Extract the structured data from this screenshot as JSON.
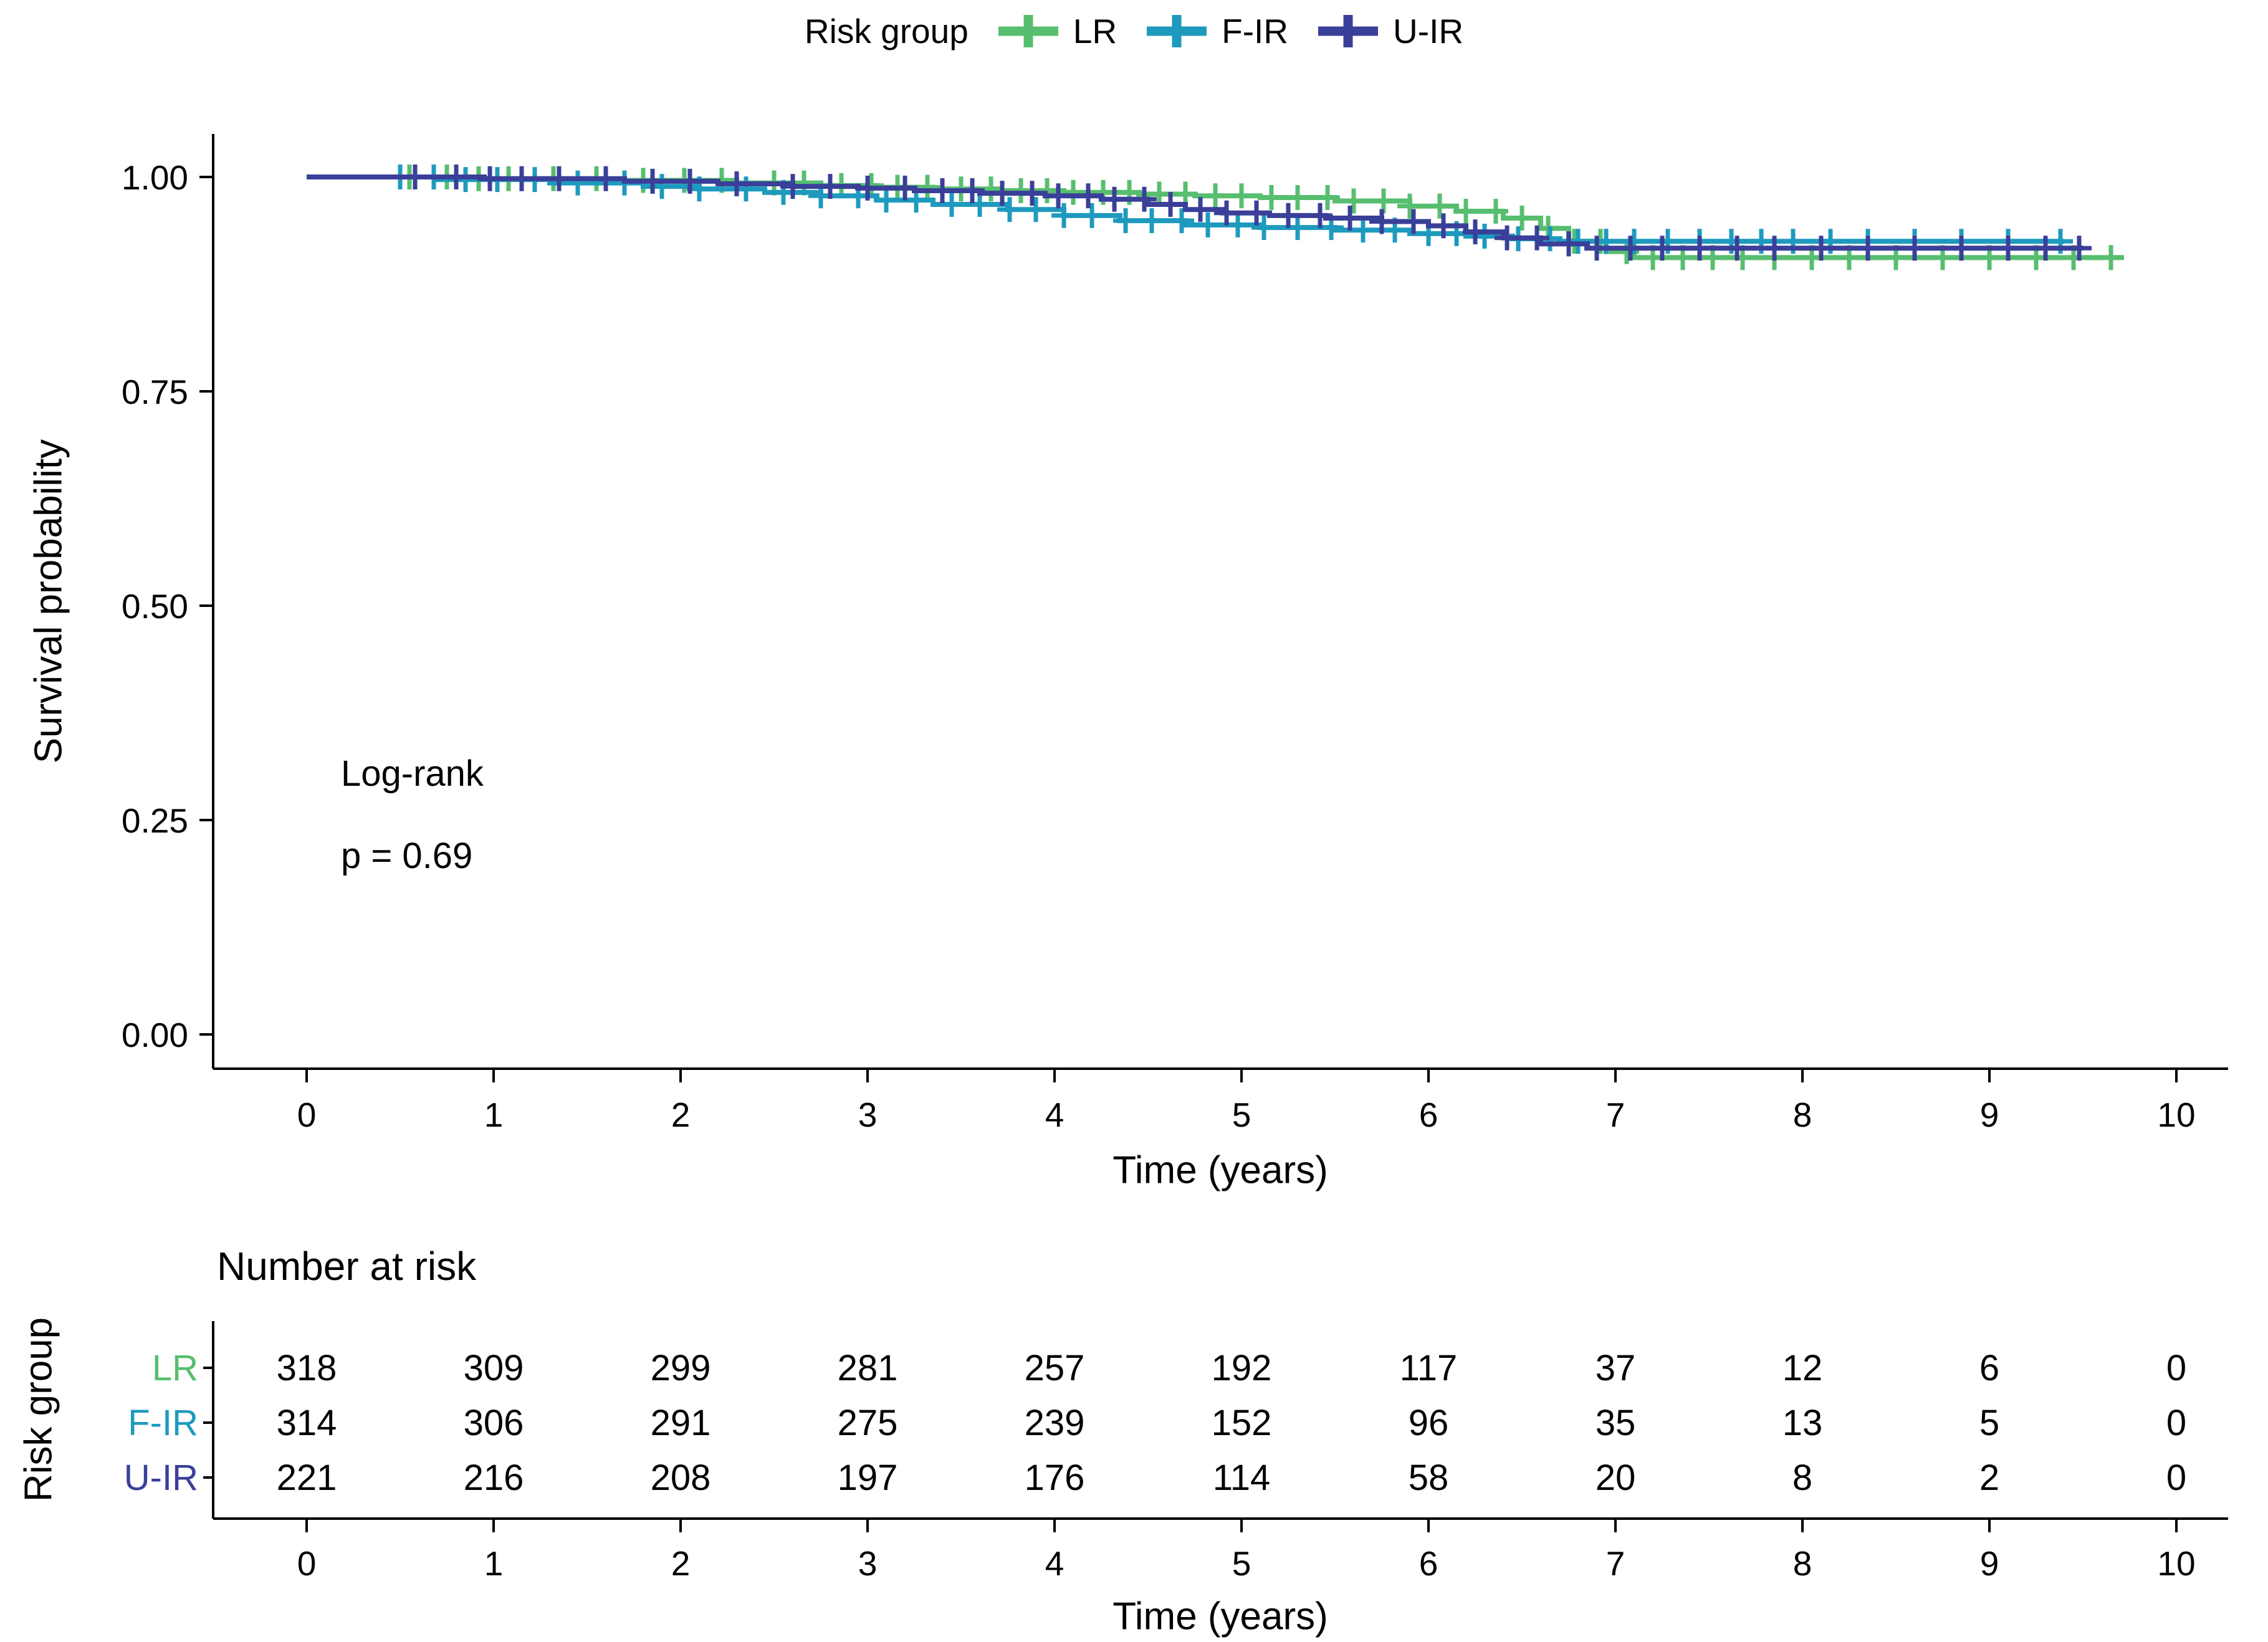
{
  "legend": {
    "title": "Risk group",
    "items": [
      {
        "label": "LR",
        "color": "#57BE6F"
      },
      {
        "label": "F-IR",
        "color": "#1E9ABE"
      },
      {
        "label": "U-IR",
        "color": "#3A3F99"
      }
    ]
  },
  "annotation": {
    "line1": "Log-rank",
    "line2": "p = 0.69"
  },
  "axes": {
    "x": {
      "label": "Time (years)",
      "ticks": [
        0,
        1,
        2,
        3,
        4,
        5,
        6,
        7,
        8,
        9,
        10
      ]
    },
    "y": {
      "label": "Survival probability",
      "ticks": [
        {
          "v": 1.0,
          "label": "1.00"
        },
        {
          "v": 0.75,
          "label": "0.75"
        },
        {
          "v": 0.5,
          "label": "0.50"
        },
        {
          "v": 0.25,
          "label": "0.25"
        },
        {
          "v": 0.0,
          "label": "0.00"
        }
      ]
    }
  },
  "risk_table": {
    "title": "Number at risk",
    "axis_label": "Risk group",
    "x_label": "Time (years)",
    "times": [
      0,
      1,
      2,
      3,
      4,
      5,
      6,
      7,
      8,
      9,
      10
    ],
    "rows": [
      {
        "label": "LR",
        "color": "#57BE6F",
        "values": [
          318,
          309,
          299,
          281,
          257,
          192,
          117,
          37,
          12,
          6,
          0
        ]
      },
      {
        "label": "F-IR",
        "color": "#1E9ABE",
        "values": [
          314,
          306,
          291,
          275,
          239,
          152,
          96,
          35,
          13,
          5,
          0
        ]
      },
      {
        "label": "U-IR",
        "color": "#3A3F99",
        "values": [
          221,
          216,
          208,
          197,
          176,
          114,
          58,
          20,
          8,
          2,
          0
        ]
      }
    ]
  },
  "chart_data": {
    "type": "line",
    "subtype": "kaplan-meier-step",
    "title": "",
    "xlabel": "Time (years)",
    "ylabel": "Survival probability",
    "xlim": [
      0,
      10
    ],
    "ylim": [
      0,
      1
    ],
    "grid": false,
    "legend_position": "top",
    "annotations": [
      "Log-rank",
      "p = 0.69"
    ],
    "series": [
      {
        "name": "LR",
        "color": "#57BE6F",
        "steps": [
          [
            0,
            1
          ],
          [
            0.85,
            0.998
          ],
          [
            1.6,
            0.996
          ],
          [
            2.3,
            0.993
          ],
          [
            2.75,
            0.99
          ],
          [
            3.05,
            0.988
          ],
          [
            3.35,
            0.986
          ],
          [
            3.7,
            0.984
          ],
          [
            4.05,
            0.982
          ],
          [
            4.45,
            0.98
          ],
          [
            4.75,
            0.978
          ],
          [
            5.1,
            0.976
          ],
          [
            5.5,
            0.972
          ],
          [
            5.9,
            0.966
          ],
          [
            6.15,
            0.96
          ],
          [
            6.4,
            0.952
          ],
          [
            6.6,
            0.94
          ],
          [
            6.75,
            0.925
          ],
          [
            6.95,
            0.913
          ],
          [
            7.1,
            0.906
          ]
        ],
        "end": 9.72,
        "censors": [
          0.55,
          0.75,
          0.92,
          1.08,
          1.32,
          1.55,
          1.8,
          2.02,
          2.22,
          2.5,
          2.66,
          2.86,
          3.02,
          3.16,
          3.32,
          3.5,
          3.66,
          3.82,
          3.96,
          4.1,
          4.26,
          4.4,
          4.56,
          4.7,
          4.86,
          5.0,
          5.16,
          5.3,
          5.46,
          5.6,
          5.76,
          5.9,
          6.06,
          6.2,
          6.36,
          6.5,
          6.64,
          6.78,
          6.92,
          7.06,
          7.2,
          7.36,
          7.52,
          7.68,
          7.85,
          8.05,
          8.25,
          8.5,
          8.75,
          9.0,
          9.25,
          9.45,
          9.65
        ]
      },
      {
        "name": "F-IR",
        "color": "#1E9ABE",
        "steps": [
          [
            0,
            1
          ],
          [
            0.7,
            0.997
          ],
          [
            1.3,
            0.993
          ],
          [
            1.8,
            0.989
          ],
          [
            2.1,
            0.986
          ],
          [
            2.45,
            0.982
          ],
          [
            2.75,
            0.978
          ],
          [
            3.05,
            0.973
          ],
          [
            3.35,
            0.968
          ],
          [
            3.75,
            0.962
          ],
          [
            4.05,
            0.955
          ],
          [
            4.35,
            0.949
          ],
          [
            4.7,
            0.944
          ],
          [
            5.1,
            0.941
          ],
          [
            5.5,
            0.938
          ],
          [
            5.9,
            0.934
          ],
          [
            6.2,
            0.931
          ],
          [
            6.45,
            0.928
          ],
          [
            6.7,
            0.925
          ]
        ],
        "end": 9.4,
        "censors": [
          0.5,
          0.68,
          0.85,
          1.02,
          1.22,
          1.45,
          1.7,
          1.9,
          2.1,
          2.35,
          2.55,
          2.75,
          2.95,
          3.1,
          3.26,
          3.45,
          3.6,
          3.76,
          3.9,
          4.05,
          4.2,
          4.38,
          4.52,
          4.68,
          4.82,
          4.98,
          5.12,
          5.3,
          5.48,
          5.65,
          5.82,
          6.0,
          6.15,
          6.3,
          6.48,
          6.65,
          6.8,
          6.95,
          7.1,
          7.28,
          7.45,
          7.62,
          7.78,
          7.95,
          8.15,
          8.35,
          8.6,
          8.85,
          9.1,
          9.38
        ]
      },
      {
        "name": "U-IR",
        "color": "#3A3F99",
        "steps": [
          [
            0,
            1
          ],
          [
            0.95,
            0.998
          ],
          [
            1.7,
            0.995
          ],
          [
            2.2,
            0.992
          ],
          [
            2.6,
            0.989
          ],
          [
            2.95,
            0.987
          ],
          [
            3.25,
            0.984
          ],
          [
            3.6,
            0.981
          ],
          [
            3.95,
            0.978
          ],
          [
            4.25,
            0.974
          ],
          [
            4.5,
            0.968
          ],
          [
            4.7,
            0.962
          ],
          [
            4.9,
            0.958
          ],
          [
            5.15,
            0.955
          ],
          [
            5.45,
            0.952
          ],
          [
            5.75,
            0.948
          ],
          [
            6.0,
            0.943
          ],
          [
            6.2,
            0.936
          ],
          [
            6.4,
            0.929
          ],
          [
            6.6,
            0.922
          ],
          [
            6.85,
            0.917
          ]
        ],
        "end": 9.5,
        "censors": [
          0.58,
          0.8,
          0.98,
          1.15,
          1.35,
          1.6,
          1.85,
          2.05,
          2.3,
          2.6,
          2.8,
          3.0,
          3.2,
          3.4,
          3.56,
          3.72,
          3.88,
          4.02,
          4.18,
          4.32,
          4.48,
          4.62,
          4.78,
          4.92,
          5.08,
          5.25,
          5.42,
          5.58,
          5.75,
          5.92,
          6.08,
          6.25,
          6.42,
          6.58,
          6.75,
          6.9,
          7.08,
          7.25,
          7.45,
          7.65,
          7.85,
          8.1,
          8.35,
          8.6,
          8.85,
          9.1,
          9.3,
          9.48
        ]
      }
    ],
    "risk_table": {
      "title": "Number at risk",
      "times": [
        0,
        1,
        2,
        3,
        4,
        5,
        6,
        7,
        8,
        9,
        10
      ],
      "rows": [
        {
          "name": "LR",
          "values": [
            318,
            309,
            299,
            281,
            257,
            192,
            117,
            37,
            12,
            6,
            0
          ]
        },
        {
          "name": "F-IR",
          "values": [
            314,
            306,
            291,
            275,
            239,
            152,
            96,
            35,
            13,
            5,
            0
          ]
        },
        {
          "name": "U-IR",
          "values": [
            221,
            216,
            208,
            197,
            176,
            114,
            58,
            20,
            8,
            2,
            0
          ]
        }
      ]
    }
  }
}
